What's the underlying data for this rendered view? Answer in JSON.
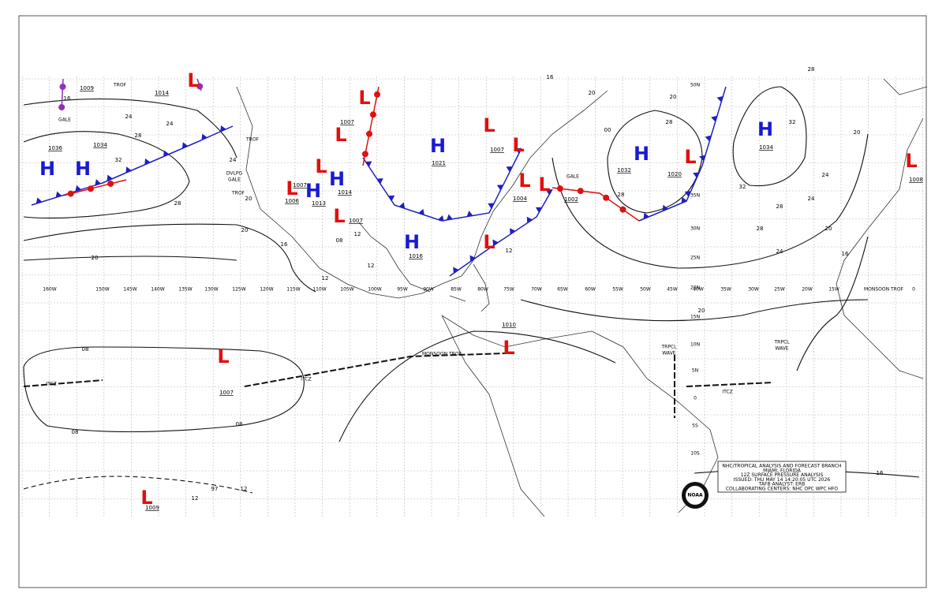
{
  "high_labels": [
    "H",
    "H",
    "H",
    "H",
    "H",
    "H",
    "H",
    "H"
  ],
  "low_labels": [
    "L",
    "L",
    "L",
    "L",
    "L",
    "L",
    "L",
    "L",
    "L",
    "L",
    "L",
    "L",
    "L",
    "L",
    "L",
    "L"
  ],
  "pressure_values": [
    "1009",
    "1014",
    "1036",
    "1034",
    "1007",
    "1007",
    "1006",
    "1013",
    "1014",
    "1007",
    "1021",
    "1016",
    "1007",
    "1004",
    "1002",
    "1032",
    "1020",
    "1034",
    "1008",
    "1010",
    "1007",
    "1009"
  ],
  "annotations": [
    "GALE",
    "GALE",
    "DVLPG",
    "GALE",
    "TROF",
    "TROF",
    "TROF",
    "MONSOON TROF",
    "ITCZ",
    "ITCZ",
    "ITCZ",
    "TRPCL",
    "WAVE",
    "TRPCL",
    "WAVE",
    "MONSOON TROF"
  ],
  "isobar_labels": [
    "16",
    "24",
    "24",
    "28",
    "32",
    "28",
    "24",
    "20",
    "20",
    "16",
    "20",
    "12",
    "12",
    "08",
    "12",
    "16",
    "20",
    "20",
    "28",
    "28",
    "32",
    "32",
    "28",
    "28",
    "28",
    "24",
    "24",
    "24",
    "20",
    "20",
    "20",
    "16",
    "16",
    "12",
    "08",
    "08",
    "08",
    "12",
    "12",
    "97",
    "00"
  ],
  "longitudes": [
    "160W",
    "150W",
    "145W",
    "140W",
    "135W",
    "130W",
    "125W",
    "120W",
    "115W",
    "110W",
    "105W",
    "100W",
    "95W",
    "90W",
    "85W",
    "80W",
    "75W",
    "70W",
    "65W",
    "60W",
    "55W",
    "50W",
    "45W",
    "40W",
    "35W",
    "30W",
    "25W",
    "20W",
    "15W",
    "0"
  ],
  "latitudes": [
    "50N",
    "35N",
    "30N",
    "25N",
    "20N",
    "15N",
    "10N",
    "5N",
    "0",
    "5S",
    "10S"
  ],
  "info_box": {
    "lines": [
      "NHC/TROPICAL ANALYSIS AND FORECAST BRANCH",
      "MIAMI, FLORIDA",
      "12Z SURFACE PRESSURE ANALYSIS",
      "ISSUED: THU MAY 14 14:20:05 UTC 2026",
      "TAFB ANALYST: ERB",
      "COLLABORATING CENTERS: NHC OPC WPC HFO"
    ],
    "logo": "NOAA"
  }
}
